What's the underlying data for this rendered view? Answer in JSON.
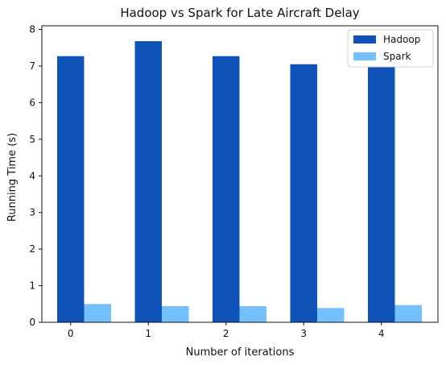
{
  "chart_data": {
    "type": "bar",
    "title": "Hadoop vs Spark for Late Aircraft Delay",
    "xlabel": "Number of iterations",
    "ylabel": "Running Time (s)",
    "categories": [
      "0",
      "1",
      "2",
      "3",
      "4"
    ],
    "ylim": [
      0,
      8.1
    ],
    "yticks": [
      0,
      1,
      2,
      3,
      4,
      5,
      6,
      7,
      8
    ],
    "grid": false,
    "legend_position": "top-right",
    "series": [
      {
        "name": "Hadoop",
        "color": "#1053b8",
        "values": [
          7.27,
          7.68,
          7.27,
          7.05,
          7.2
        ]
      },
      {
        "name": "Spark",
        "color": "#74c0fc",
        "values": [
          0.5,
          0.44,
          0.44,
          0.39,
          0.47
        ]
      }
    ]
  }
}
